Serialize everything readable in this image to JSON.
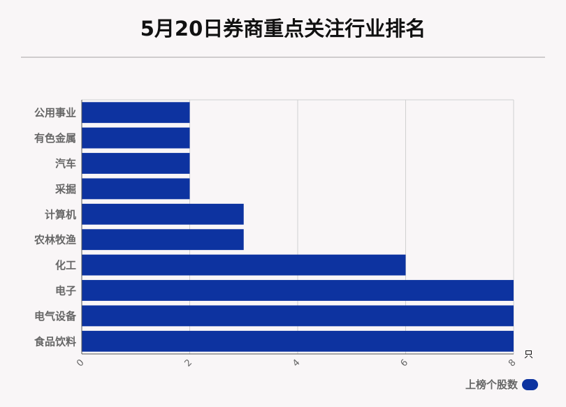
{
  "page": {
    "title": "5月20日券商重点关注行业排名"
  },
  "colors": {
    "bar": "#0d33a0",
    "grid": "#d0d0d0",
    "label": "#666666"
  },
  "chart_data": {
    "type": "bar",
    "orientation": "horizontal",
    "title": "5月20日券商重点关注行业排名",
    "categories": [
      "公用事业",
      "有色金属",
      "汽车",
      "采掘",
      "计算机",
      "农林牧渔",
      "化工",
      "电子",
      "电气设备",
      "食品饮料"
    ],
    "series": [
      {
        "name": "上榜个股数",
        "values": [
          2,
          2,
          2,
          2,
          3,
          3,
          6,
          8,
          8,
          8
        ]
      }
    ],
    "xlim": [
      0,
      8
    ],
    "xticks": [
      "0",
      "2",
      "4",
      "6",
      "8"
    ],
    "xunit": "只",
    "grid": true,
    "legend_position": "bottom-right"
  }
}
